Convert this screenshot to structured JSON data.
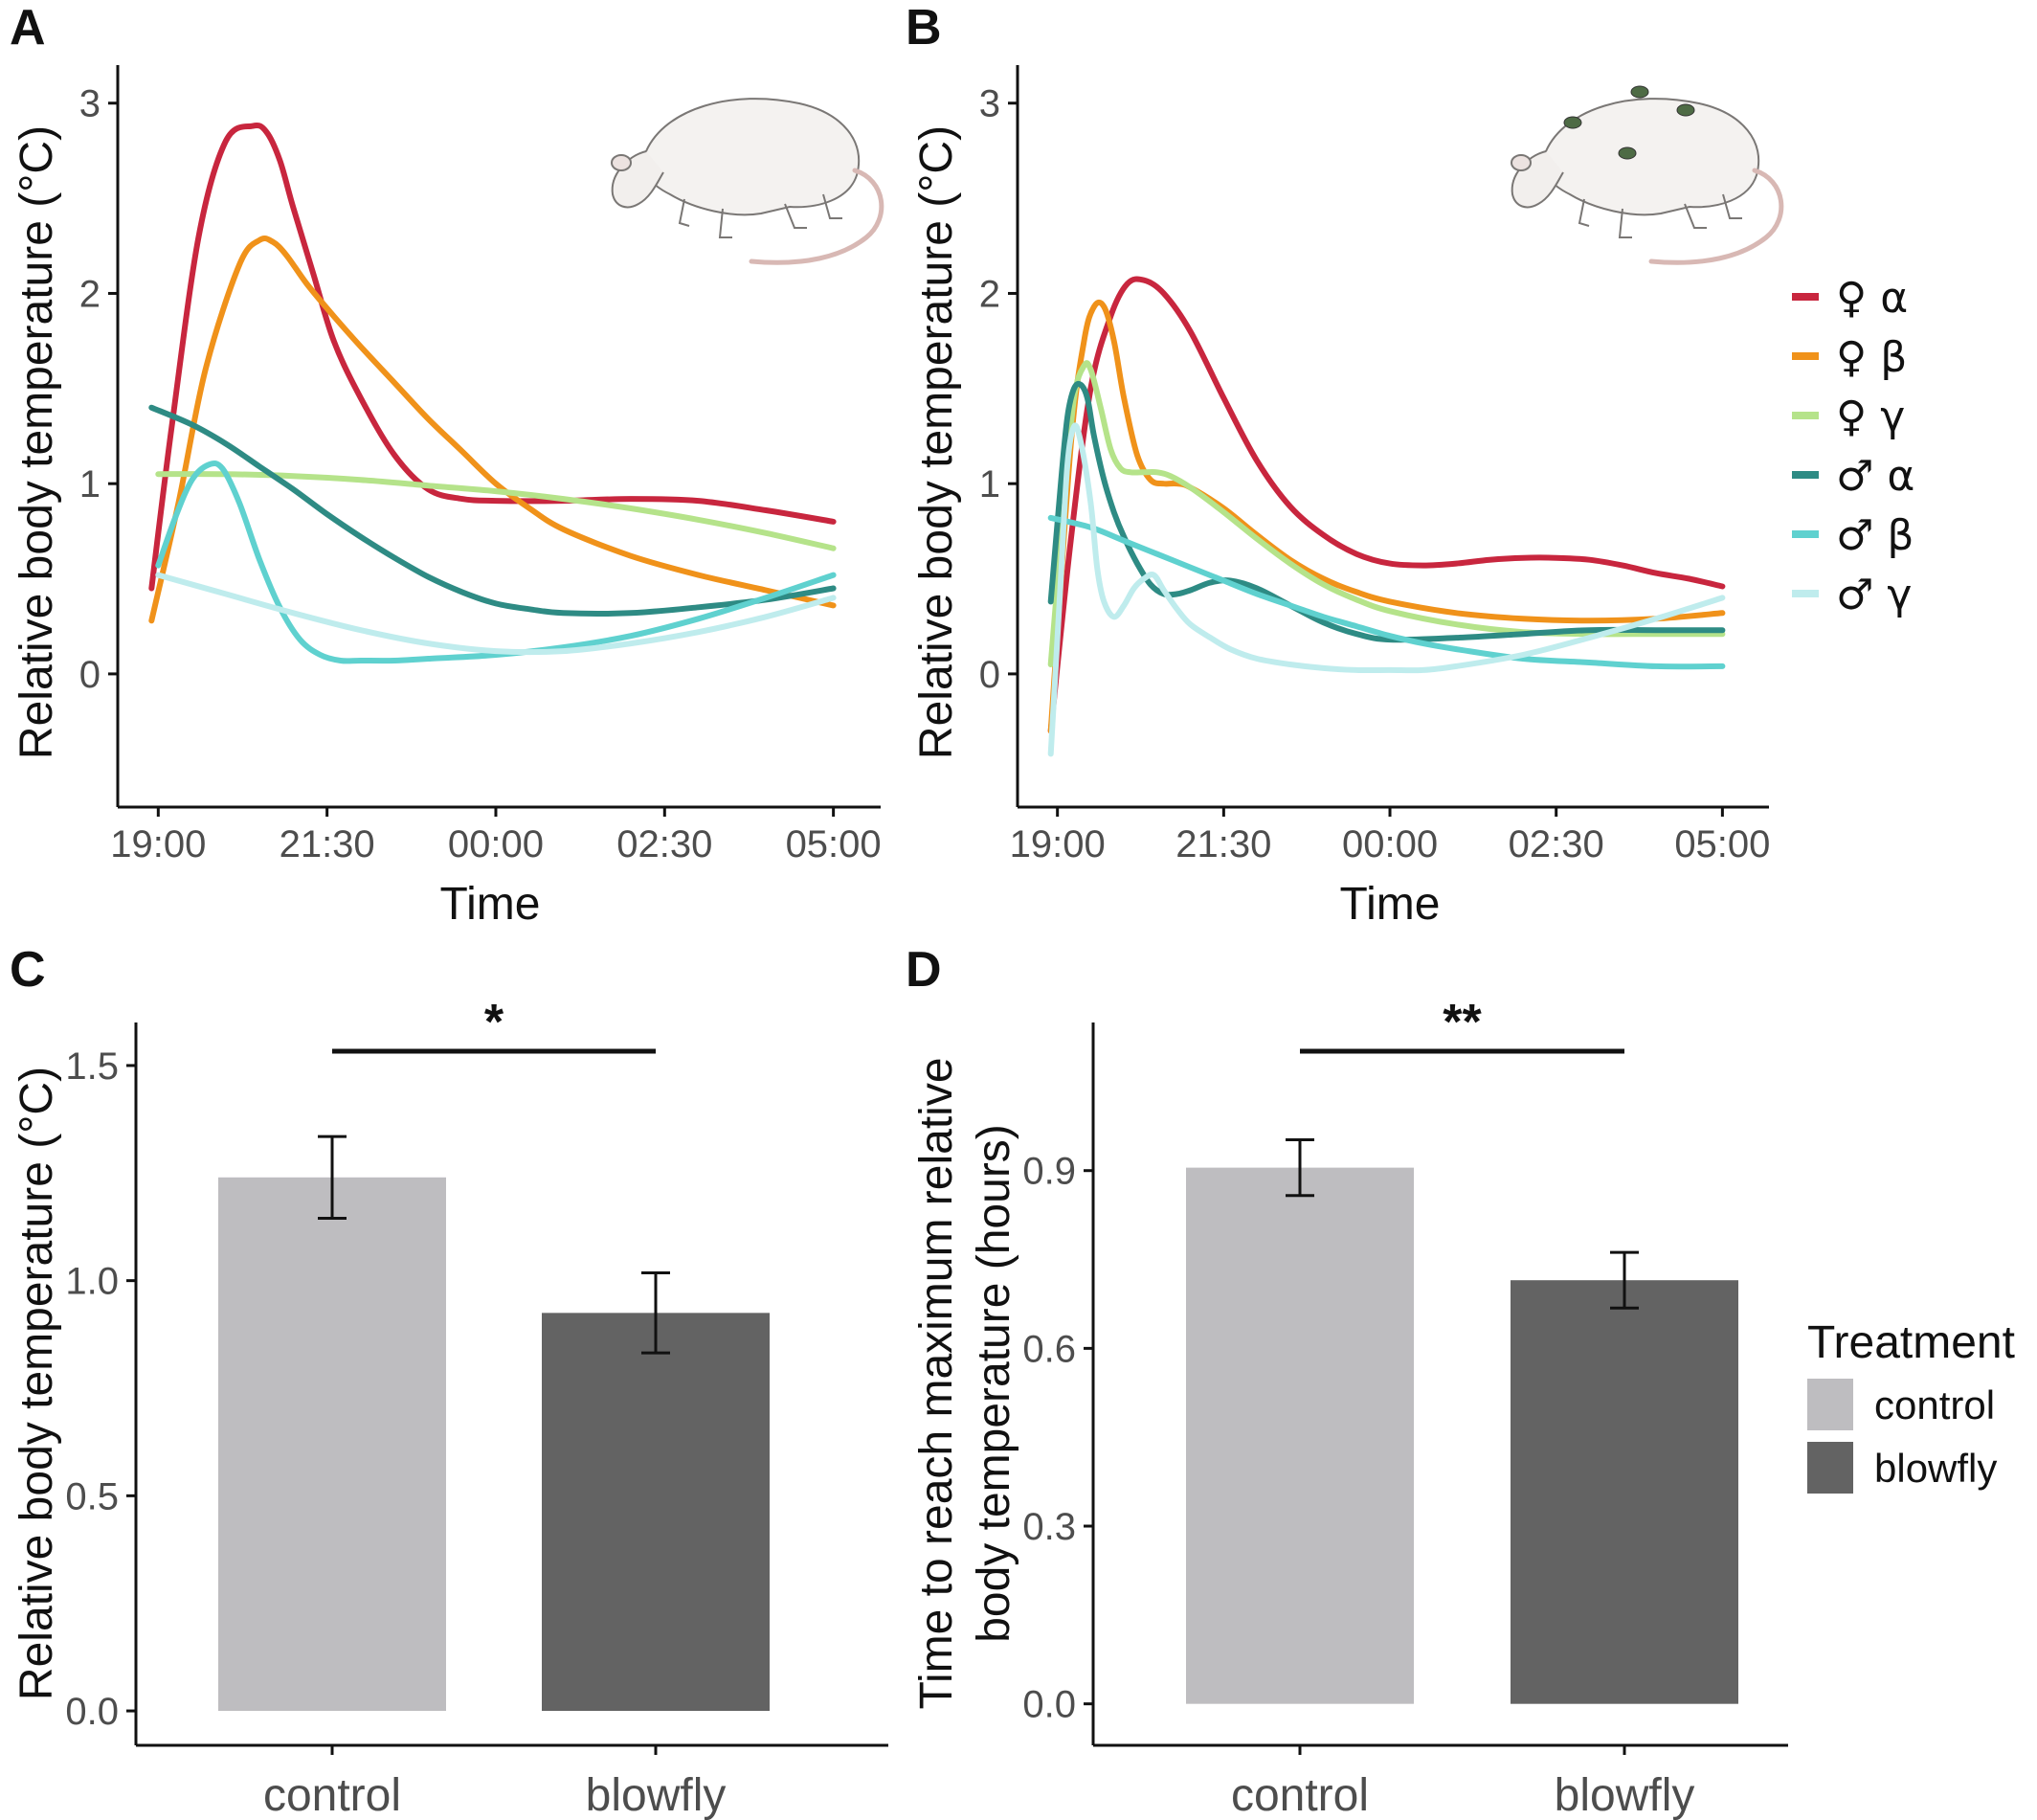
{
  "panels": {
    "A": {
      "letter": "A"
    },
    "B": {
      "letter": "B"
    },
    "C": {
      "letter": "C"
    },
    "D": {
      "letter": "D"
    }
  },
  "colors": {
    "female_alpha": "#c8263e",
    "female_beta": "#f0921a",
    "female_gamma": "#b5e38a",
    "male_alpha": "#2e8b84",
    "male_beta": "#5fd1cf",
    "male_gamma": "#bfeced",
    "control_bar": "#bebdc0",
    "blowfly_bar": "#636363"
  },
  "icons": {
    "panel_a": "rat-illustration",
    "panel_b": "rat-with-blowflies-illustration"
  },
  "chart_data": [
    {
      "panel": "A",
      "type": "line",
      "xlabel": "Time",
      "ylabel": "Relative body temperature (°C)",
      "x_ticks": [
        "19:00",
        "21:30",
        "00:00",
        "02:30",
        "05:00"
      ],
      "x_tick_hours": [
        0,
        2.5,
        5,
        7.5,
        10
      ],
      "y_ticks": [
        "0",
        "1",
        "2",
        "3"
      ],
      "ylim": [
        -0.7,
        3.2
      ],
      "xlim_hours": [
        -0.6,
        10.7
      ],
      "x_unit": "hours after 19:00",
      "series": [
        {
          "key": "female_alpha",
          "x": [
            -0.1,
            0.2,
            0.6,
            1.0,
            1.4,
            1.6,
            1.8,
            2.0,
            2.3,
            2.6,
            3.0,
            3.5,
            4.0,
            4.5,
            5.0,
            6.0,
            7.0,
            8.0,
            9.0,
            10.0
          ],
          "values": [
            0.45,
            1.3,
            2.3,
            2.8,
            2.88,
            2.85,
            2.7,
            2.45,
            2.1,
            1.75,
            1.45,
            1.15,
            0.97,
            0.92,
            0.91,
            0.91,
            0.92,
            0.91,
            0.86,
            0.8
          ]
        },
        {
          "key": "female_beta",
          "x": [
            -0.1,
            0.3,
            0.7,
            1.2,
            1.5,
            1.7,
            1.9,
            2.2,
            2.6,
            3.0,
            3.5,
            4.0,
            4.5,
            5.0,
            5.5,
            6.0,
            7.0,
            8.0,
            9.0,
            10.0
          ],
          "values": [
            0.28,
            0.9,
            1.6,
            2.15,
            2.28,
            2.27,
            2.2,
            2.05,
            1.88,
            1.72,
            1.53,
            1.34,
            1.17,
            1.0,
            0.87,
            0.76,
            0.62,
            0.52,
            0.44,
            0.36
          ]
        },
        {
          "key": "female_gamma",
          "x": [
            0,
            1,
            2,
            3,
            4,
            5,
            6,
            7,
            8,
            9,
            10
          ],
          "values": [
            1.05,
            1.05,
            1.04,
            1.02,
            0.99,
            0.96,
            0.92,
            0.87,
            0.81,
            0.74,
            0.66
          ]
        },
        {
          "key": "male_alpha",
          "x": [
            -0.1,
            0.5,
            1.0,
            1.5,
            2.0,
            2.5,
            3.0,
            3.5,
            4.0,
            4.5,
            5.0,
            5.5,
            6.0,
            7.0,
            8.0,
            9.0,
            10.0
          ],
          "values": [
            1.4,
            1.31,
            1.21,
            1.09,
            0.97,
            0.84,
            0.72,
            0.61,
            0.51,
            0.43,
            0.37,
            0.34,
            0.32,
            0.32,
            0.35,
            0.39,
            0.45
          ]
        },
        {
          "key": "male_beta",
          "x": [
            0,
            0.25,
            0.5,
            0.75,
            0.95,
            1.2,
            1.5,
            1.8,
            2.1,
            2.4,
            2.7,
            3.0,
            3.5,
            4.0,
            5.0,
            6.0,
            7.0,
            8.0,
            9.0,
            10.0
          ],
          "values": [
            0.57,
            0.82,
            1.02,
            1.1,
            1.08,
            0.9,
            0.6,
            0.35,
            0.18,
            0.1,
            0.07,
            0.07,
            0.07,
            0.08,
            0.1,
            0.14,
            0.2,
            0.29,
            0.4,
            0.52
          ]
        },
        {
          "key": "male_gamma",
          "x": [
            0,
            1,
            2,
            3,
            4,
            5,
            6,
            7,
            8,
            9,
            10
          ],
          "values": [
            0.52,
            0.42,
            0.32,
            0.23,
            0.16,
            0.12,
            0.12,
            0.16,
            0.22,
            0.3,
            0.4
          ]
        }
      ]
    },
    {
      "panel": "B",
      "type": "line",
      "xlabel": "Time",
      "ylabel": "Relative body temperature (°C)",
      "x_ticks": [
        "19:00",
        "21:30",
        "00:00",
        "02:30",
        "05:00"
      ],
      "x_tick_hours": [
        0,
        2.5,
        5,
        7.5,
        10
      ],
      "y_ticks": [
        "0",
        "1",
        "2",
        "3"
      ],
      "ylim": [
        -0.7,
        3.2
      ],
      "xlim_hours": [
        -0.6,
        10.7
      ],
      "x_unit": "hours after 19:00",
      "legend": {
        "position": "right",
        "items": [
          {
            "key": "female_alpha",
            "label": "♀ α"
          },
          {
            "key": "female_beta",
            "label": "♀ β"
          },
          {
            "key": "female_gamma",
            "label": "♀ γ"
          },
          {
            "key": "male_alpha",
            "label": "♂ α"
          },
          {
            "key": "male_beta",
            "label": "♂ β"
          },
          {
            "key": "male_gamma",
            "label": "♂ γ"
          }
        ]
      },
      "series": [
        {
          "key": "female_alpha",
          "x": [
            -0.1,
            0.2,
            0.5,
            0.8,
            1.05,
            1.3,
            1.6,
            2.0,
            2.5,
            3.0,
            3.5,
            4.0,
            4.5,
            5.0,
            5.5,
            6.0,
            6.5,
            7.0,
            7.5,
            8.0,
            8.5,
            9.0,
            9.5,
            10.0
          ],
          "values": [
            -0.3,
            0.7,
            1.5,
            1.88,
            2.05,
            2.07,
            2.0,
            1.8,
            1.45,
            1.12,
            0.88,
            0.73,
            0.63,
            0.58,
            0.57,
            0.58,
            0.6,
            0.61,
            0.61,
            0.6,
            0.57,
            0.53,
            0.5,
            0.46
          ]
        },
        {
          "key": "female_beta",
          "x": [
            -0.1,
            0.2,
            0.4,
            0.55,
            0.7,
            0.85,
            1.0,
            1.2,
            1.4,
            1.6,
            1.8,
            2.0,
            2.5,
            3.0,
            3.5,
            4.0,
            4.5,
            5.0,
            6.0,
            7.0,
            8.0,
            9.0,
            10.0
          ],
          "values": [
            -0.3,
            1.2,
            1.75,
            1.93,
            1.93,
            1.75,
            1.45,
            1.15,
            1.02,
            1.0,
            1.0,
            0.98,
            0.87,
            0.73,
            0.6,
            0.5,
            0.43,
            0.38,
            0.32,
            0.29,
            0.28,
            0.29,
            0.32
          ]
        },
        {
          "key": "female_gamma",
          "x": [
            -0.1,
            0.1,
            0.25,
            0.4,
            0.5,
            0.65,
            0.8,
            0.95,
            1.1,
            1.3,
            1.5,
            1.7,
            2.0,
            2.5,
            3.0,
            3.5,
            4.0,
            4.5,
            5.0,
            6.0,
            7.0,
            8.0,
            9.0,
            10.0
          ],
          "values": [
            0.05,
            0.9,
            1.45,
            1.62,
            1.6,
            1.4,
            1.18,
            1.08,
            1.06,
            1.06,
            1.06,
            1.04,
            0.98,
            0.85,
            0.71,
            0.58,
            0.47,
            0.39,
            0.33,
            0.26,
            0.22,
            0.21,
            0.21,
            0.21
          ]
        },
        {
          "key": "male_alpha",
          "x": [
            -0.1,
            0.05,
            0.15,
            0.25,
            0.35,
            0.45,
            0.55,
            0.7,
            0.85,
            1.0,
            1.2,
            1.4,
            1.6,
            1.8,
            2.0,
            2.3,
            2.6,
            3.0,
            3.5,
            4.0,
            4.5,
            5.0,
            6.0,
            7.0,
            8.0,
            9.0,
            10.0
          ],
          "values": [
            0.38,
            1.0,
            1.35,
            1.5,
            1.52,
            1.45,
            1.25,
            1.02,
            0.85,
            0.72,
            0.58,
            0.47,
            0.42,
            0.42,
            0.44,
            0.48,
            0.49,
            0.45,
            0.36,
            0.27,
            0.21,
            0.18,
            0.19,
            0.21,
            0.23,
            0.23,
            0.23
          ]
        },
        {
          "key": "male_beta",
          "x": [
            -0.1,
            0.5,
            1.0,
            1.5,
            2.0,
            2.5,
            3.0,
            3.5,
            4.0,
            4.5,
            5.0,
            5.5,
            6.0,
            7.0,
            8.0,
            9.0,
            10.0
          ],
          "values": [
            0.82,
            0.77,
            0.7,
            0.63,
            0.56,
            0.49,
            0.42,
            0.36,
            0.3,
            0.25,
            0.2,
            0.16,
            0.13,
            0.08,
            0.06,
            0.04,
            0.04
          ]
        },
        {
          "key": "male_gamma",
          "x": [
            -0.1,
            0.05,
            0.15,
            0.25,
            0.35,
            0.5,
            0.6,
            0.7,
            0.85,
            1.0,
            1.15,
            1.3,
            1.45,
            1.6,
            1.8,
            2.0,
            2.3,
            2.6,
            3.0,
            3.5,
            4.0,
            4.5,
            5.0,
            5.5,
            6.0,
            7.0,
            8.0,
            9.0,
            10.0
          ],
          "values": [
            -0.42,
            0.5,
            1.1,
            1.3,
            1.22,
            0.9,
            0.55,
            0.38,
            0.3,
            0.36,
            0.45,
            0.5,
            0.52,
            0.44,
            0.34,
            0.26,
            0.19,
            0.13,
            0.08,
            0.05,
            0.03,
            0.02,
            0.02,
            0.02,
            0.04,
            0.1,
            0.19,
            0.29,
            0.4
          ]
        }
      ]
    },
    {
      "panel": "C",
      "type": "bar",
      "categories": [
        "control",
        "blowfly"
      ],
      "values": [
        1.24,
        0.925
      ],
      "error": [
        [
          1.145,
          1.335
        ],
        [
          0.832,
          1.018
        ]
      ],
      "ylabel": "Relative body temperature (°C)",
      "y_ticks": [
        "0.0",
        "0.5",
        "1.0",
        "1.5"
      ],
      "ylim": [
        -0.08,
        1.6
      ],
      "significance": "*"
    },
    {
      "panel": "D",
      "type": "bar",
      "categories": [
        "control",
        "blowfly"
      ],
      "values": [
        0.905,
        0.715
      ],
      "error": [
        [
          0.858,
          0.952
        ],
        [
          0.668,
          0.762
        ]
      ],
      "ylabel_lines": [
        "Time to reach maximum relative",
        "body temperature (hours)"
      ],
      "y_ticks": [
        "0.0",
        "0.3",
        "0.6",
        "0.9"
      ],
      "ylim": [
        -0.07,
        1.15
      ],
      "significance": "**",
      "legend": {
        "title": "Treatment",
        "position": "right",
        "items": [
          {
            "key": "control_bar",
            "label": "control"
          },
          {
            "key": "blowfly_bar",
            "label": "blowfly"
          }
        ]
      }
    }
  ]
}
